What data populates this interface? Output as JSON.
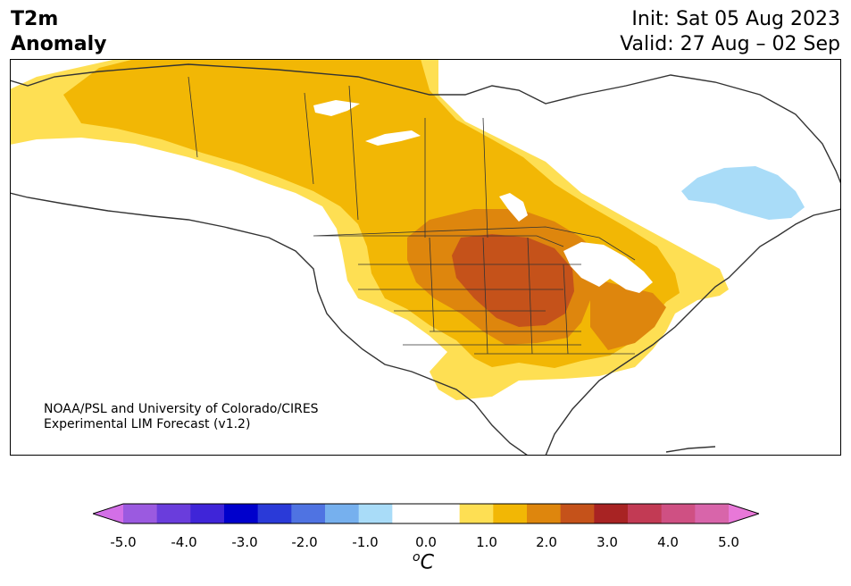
{
  "header": {
    "title_line1": "T2m",
    "title_line2": "Anomaly",
    "init": "Init: Sat 05 Aug 2023",
    "valid": "Valid: 27 Aug – 02 Sep"
  },
  "credit": {
    "line1": "NOAA/PSL and University of Colorado/CIRES",
    "line2": "Experimental LIM Forecast (v1.2)"
  },
  "colorbar": {
    "ticks": [
      "-5.0",
      "-4.0",
      "-3.0",
      "-2.0",
      "-1.0",
      "0.0",
      "1.0",
      "2.0",
      "3.0",
      "4.0",
      "5.0"
    ],
    "unit_symbol": "o",
    "unit_letter": "C",
    "colors": [
      "#d36fe7",
      "#9b5ae0",
      "#6a3ddc",
      "#3f25d8",
      "#0000cc",
      "#2a3ad8",
      "#4f73e2",
      "#76b0ee",
      "#a9dcf8",
      "#ffffff",
      "#ffffff",
      "#fedf53",
      "#f2b705",
      "#de860d",
      "#c5521a",
      "#a82323",
      "#c23a54",
      "#cf5083",
      "#d865aa",
      "#e878d8"
    ]
  },
  "legend_colors": {
    "anom_0_5_1_0": "#fedf53",
    "anom_1_0_1_5": "#f2b705",
    "anom_1_5_2_0": "#de860d",
    "anom_2_0_2_5": "#c5521a",
    "anom_neg_1_0_neg_0_5": "#a9dcf8"
  }
}
